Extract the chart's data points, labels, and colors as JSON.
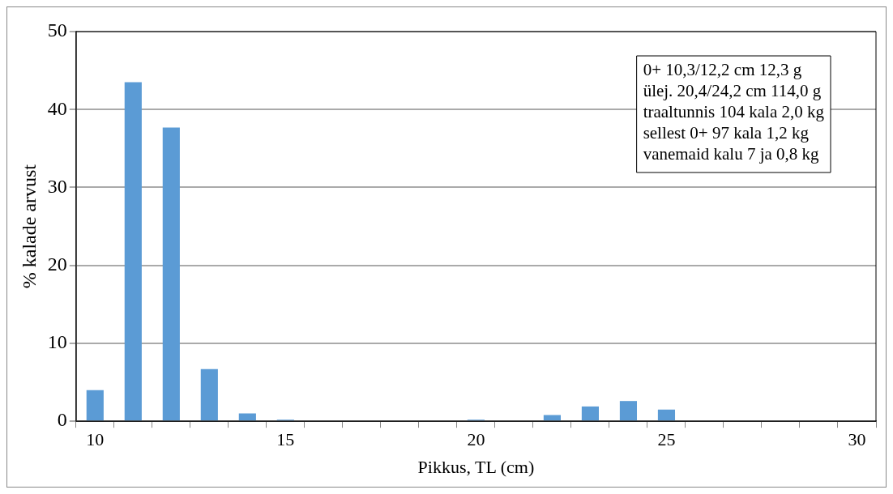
{
  "chart_data": {
    "type": "bar",
    "xlabel": "Pikkus, TL (cm)",
    "ylabel": "% kalade arvust",
    "categories": [
      "10",
      null,
      null,
      null,
      null,
      "15",
      null,
      null,
      null,
      null,
      "20",
      null,
      null,
      null,
      null,
      "25",
      null,
      null,
      null,
      null,
      "30"
    ],
    "values": [
      4.0,
      43.5,
      37.7,
      6.7,
      1.0,
      0.2,
      0,
      0,
      0,
      null,
      0.2,
      null,
      0.8,
      1.9,
      2.6,
      1.5,
      null,
      0,
      null,
      0,
      0
    ],
    "color": "#5b9bd5",
    "ylim": [
      0,
      50
    ],
    "yticks": [
      0,
      10,
      20,
      30,
      40,
      50
    ],
    "grid": "y",
    "legend": false,
    "annotations": [
      "0+ 10,3/12,2 cm 12,3 g",
      "ülej. 20,4/24,2 cm 114,0 g",
      "traaltunnis 104 kala 2,0 kg",
      "sellest 0+ 97 kala 1,2 kg",
      "vanemaid kalu 7 ja 0,8 kg"
    ]
  }
}
